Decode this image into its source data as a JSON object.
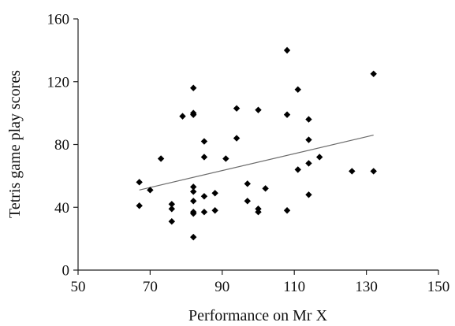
{
  "chart_data": {
    "type": "scatter",
    "title": "",
    "xlabel": "Performance on Mr X",
    "ylabel": "Tetris game play scores",
    "xlim": [
      50,
      150
    ],
    "ylim": [
      0,
      160
    ],
    "xticks": [
      50,
      70,
      90,
      110,
      130,
      150
    ],
    "yticks": [
      0,
      40,
      80,
      120,
      160
    ],
    "grid": false,
    "legend": "none",
    "marker": "diamond",
    "marker_color": "#000000",
    "trendline": {
      "type": "linear",
      "x": [
        67,
        132
      ],
      "y": [
        51,
        86
      ],
      "color": "#6b6b6b"
    },
    "points": [
      {
        "x": 67,
        "y": 56
      },
      {
        "x": 67,
        "y": 41
      },
      {
        "x": 70,
        "y": 51
      },
      {
        "x": 73,
        "y": 71
      },
      {
        "x": 76,
        "y": 42
      },
      {
        "x": 76,
        "y": 39
      },
      {
        "x": 76,
        "y": 31
      },
      {
        "x": 79,
        "y": 98
      },
      {
        "x": 82,
        "y": 116
      },
      {
        "x": 82,
        "y": 100
      },
      {
        "x": 82,
        "y": 99
      },
      {
        "x": 82,
        "y": 53
      },
      {
        "x": 82,
        "y": 50
      },
      {
        "x": 82,
        "y": 44
      },
      {
        "x": 82,
        "y": 37
      },
      {
        "x": 82,
        "y": 36
      },
      {
        "x": 82,
        "y": 21
      },
      {
        "x": 85,
        "y": 82
      },
      {
        "x": 85,
        "y": 72
      },
      {
        "x": 85,
        "y": 47
      },
      {
        "x": 85,
        "y": 37
      },
      {
        "x": 88,
        "y": 49
      },
      {
        "x": 88,
        "y": 38
      },
      {
        "x": 91,
        "y": 71
      },
      {
        "x": 94,
        "y": 103
      },
      {
        "x": 94,
        "y": 84
      },
      {
        "x": 97,
        "y": 55
      },
      {
        "x": 97,
        "y": 44
      },
      {
        "x": 100,
        "y": 102
      },
      {
        "x": 100,
        "y": 39
      },
      {
        "x": 100,
        "y": 37
      },
      {
        "x": 102,
        "y": 52
      },
      {
        "x": 108,
        "y": 140
      },
      {
        "x": 108,
        "y": 99
      },
      {
        "x": 108,
        "y": 38
      },
      {
        "x": 111,
        "y": 115
      },
      {
        "x": 111,
        "y": 64
      },
      {
        "x": 114,
        "y": 96
      },
      {
        "x": 114,
        "y": 83
      },
      {
        "x": 114,
        "y": 68
      },
      {
        "x": 114,
        "y": 48
      },
      {
        "x": 117,
        "y": 72
      },
      {
        "x": 126,
        "y": 63
      },
      {
        "x": 132,
        "y": 125
      },
      {
        "x": 132,
        "y": 63
      }
    ]
  }
}
